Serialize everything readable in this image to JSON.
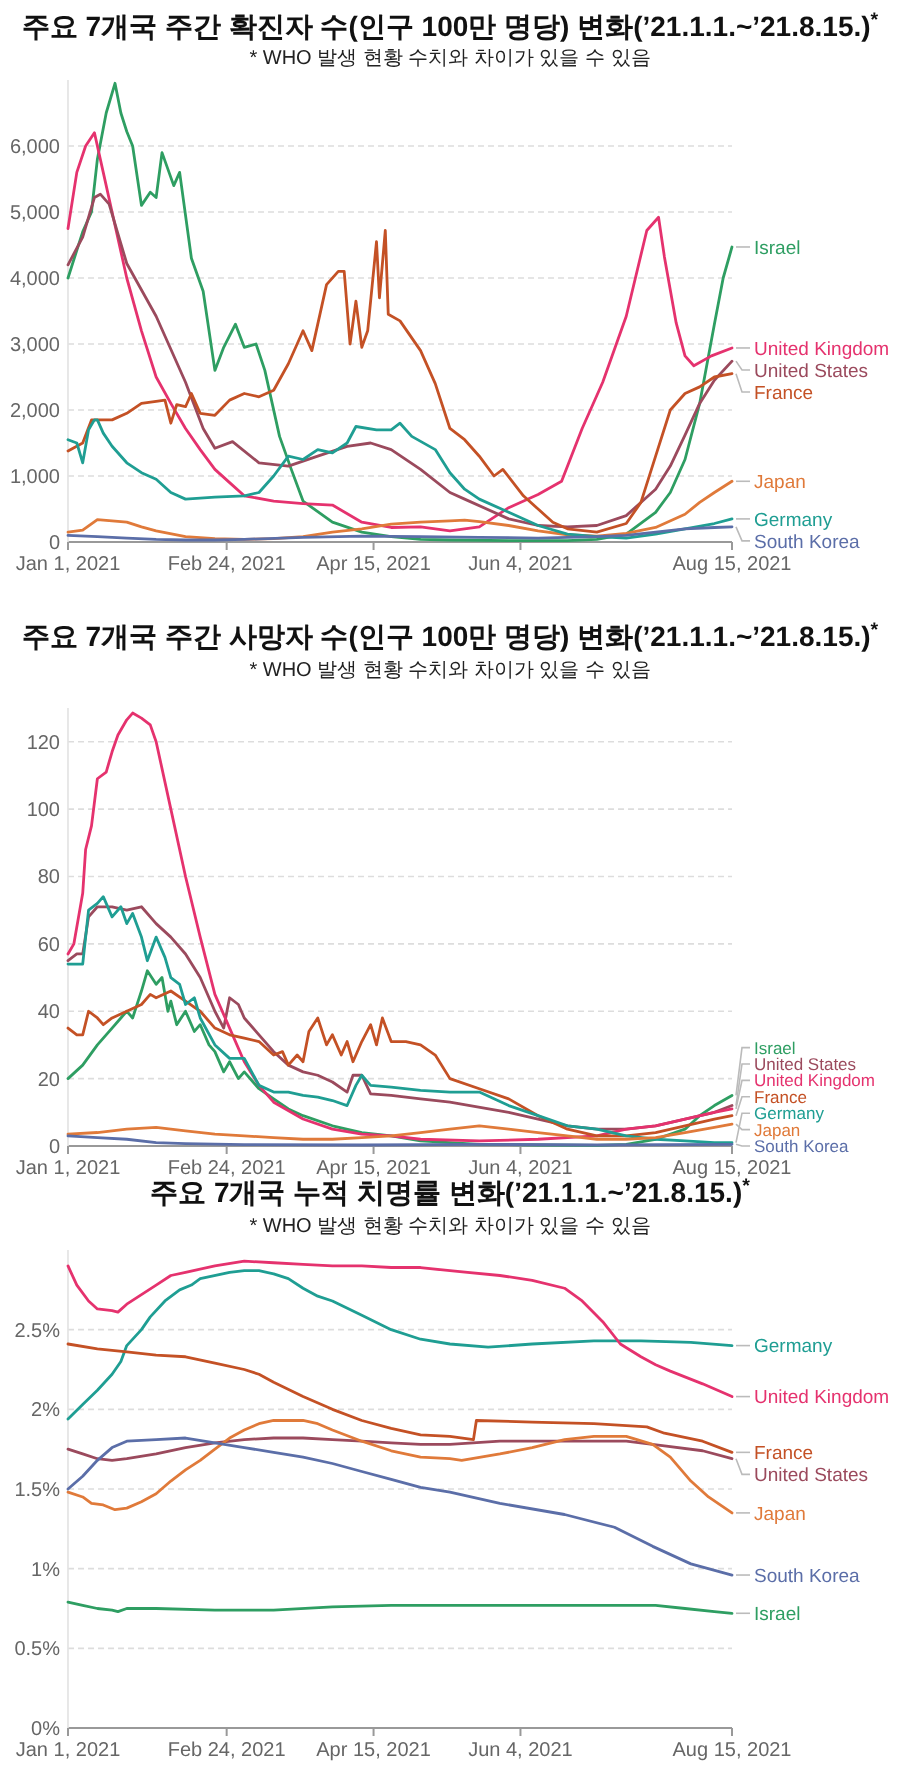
{
  "chart_data": [
    {
      "type": "line",
      "title": "주요 7개국 주간 확진자 수(인구 100만 명당) 변화(’21.1.1.~’21.8.15.)$^{*}$",
      "subtitle": "* WHO 발생 현황 수치와 차이가 있을 수 있음",
      "grid": "y",
      "legend": "right",
      "xlim": [
        "2021-01-01",
        "2021-08-15"
      ],
      "xticks": [
        {
          "value": "2021-01-01",
          "label": "Jan 1, 2021"
        },
        {
          "value": "2021-02-24",
          "label": "Feb 24, 2021"
        },
        {
          "value": "2021-04-15",
          "label": "Apr 15, 2021"
        },
        {
          "value": "2021-06-04",
          "label": "Jun 4, 2021"
        },
        {
          "value": "2021-08-15",
          "label": "Aug 15, 2021"
        }
      ],
      "ylim": [
        0,
        7000
      ],
      "yticks": [
        0,
        {
          "value": 1000,
          "label": "1,000"
        },
        {
          "value": 2000,
          "label": "2,000"
        },
        {
          "value": 3000,
          "label": "3,000"
        },
        {
          "value": 4000,
          "label": "4,000"
        },
        {
          "value": 5000,
          "label": "5,000"
        },
        {
          "value": 6000,
          "label": "6,000"
        }
      ],
      "series": [
        {
          "name": "Israel",
          "color": "#2e9e62",
          "x": [
            "2021-01-01",
            "2021-01-06",
            "2021-01-09",
            "2021-01-11",
            "2021-01-14",
            "2021-01-17",
            "2021-01-19",
            "2021-01-21",
            "2021-01-23",
            "2021-01-26",
            "2021-01-29",
            "2021-01-31",
            "2021-02-02",
            "2021-02-06",
            "2021-02-08",
            "2021-02-12",
            "2021-02-16",
            "2021-02-20",
            "2021-02-23",
            "2021-02-27",
            "2021-03-02",
            "2021-03-06",
            "2021-03-09",
            "2021-03-14",
            "2021-03-18",
            "2021-03-22",
            "2021-04-01",
            "2021-04-11",
            "2021-04-21",
            "2021-05-01",
            "2021-05-11",
            "2021-05-31",
            "2021-06-20",
            "2021-06-30",
            "2021-07-10",
            "2021-07-20",
            "2021-07-25",
            "2021-07-30",
            "2021-08-04",
            "2021-08-09",
            "2021-08-12",
            "2021-08-15"
          ],
          "values": [
            4000,
            4700,
            5000,
            5800,
            6500,
            6950,
            6500,
            6220,
            6000,
            5100,
            5300,
            5220,
            5900,
            5400,
            5600,
            4300,
            3800,
            2600,
            2950,
            3300,
            2950,
            3000,
            2600,
            1600,
            1100,
            620,
            300,
            150,
            80,
            40,
            30,
            20,
            20,
            40,
            120,
            450,
            750,
            1250,
            2100,
            3300,
            4000,
            4470
          ]
        },
        {
          "name": "United Kingdom",
          "color": "#e5326e",
          "x": [
            "2021-01-01",
            "2021-01-04",
            "2021-01-07",
            "2021-01-10",
            "2021-01-13",
            "2021-01-17",
            "2021-01-21",
            "2021-01-26",
            "2021-01-31",
            "2021-02-05",
            "2021-02-10",
            "2021-02-15",
            "2021-02-20",
            "2021-02-25",
            "2021-03-02",
            "2021-03-12",
            "2021-03-22",
            "2021-04-01",
            "2021-04-11",
            "2021-04-21",
            "2021-05-01",
            "2021-05-11",
            "2021-05-21",
            "2021-05-31",
            "2021-06-10",
            "2021-06-18",
            "2021-06-25",
            "2021-07-02",
            "2021-07-10",
            "2021-07-17",
            "2021-07-21",
            "2021-07-23",
            "2021-07-27",
            "2021-07-30",
            "2021-08-02",
            "2021-08-08",
            "2021-08-15"
          ],
          "values": [
            4750,
            5600,
            6000,
            6200,
            5600,
            4800,
            4000,
            3200,
            2500,
            2100,
            1720,
            1400,
            1100,
            900,
            700,
            620,
            580,
            560,
            300,
            220,
            230,
            170,
            230,
            520,
            720,
            920,
            1720,
            2420,
            3420,
            4720,
            4920,
            4320,
            3320,
            2820,
            2670,
            2820,
            2940
          ]
        },
        {
          "name": "United States",
          "color": "#9b4a5d",
          "x": [
            "2021-01-01",
            "2021-01-06",
            "2021-01-10",
            "2021-01-12",
            "2021-01-15",
            "2021-01-21",
            "2021-01-31",
            "2021-02-10",
            "2021-02-16",
            "2021-02-20",
            "2021-02-26",
            "2021-03-07",
            "2021-03-17",
            "2021-03-27",
            "2021-04-06",
            "2021-04-14",
            "2021-04-21",
            "2021-05-01",
            "2021-05-11",
            "2021-05-16",
            "2021-05-31",
            "2021-06-10",
            "2021-06-20",
            "2021-06-30",
            "2021-07-10",
            "2021-07-20",
            "2021-07-25",
            "2021-07-30",
            "2021-08-04",
            "2021-08-09",
            "2021-08-15"
          ],
          "values": [
            4200,
            4620,
            5220,
            5270,
            5120,
            4220,
            3420,
            2420,
            1720,
            1420,
            1520,
            1200,
            1150,
            1300,
            1450,
            1500,
            1400,
            1100,
            750,
            650,
            350,
            250,
            230,
            250,
            400,
            800,
            1150,
            1620,
            2100,
            2450,
            2740
          ]
        },
        {
          "name": "France",
          "color": "#c45125",
          "x": [
            "2021-01-01",
            "2021-01-06",
            "2021-01-09",
            "2021-01-16",
            "2021-01-21",
            "2021-01-26",
            "2021-01-31",
            "2021-02-03",
            "2021-02-05",
            "2021-02-07",
            "2021-02-10",
            "2021-02-12",
            "2021-02-15",
            "2021-02-20",
            "2021-02-25",
            "2021-03-02",
            "2021-03-07",
            "2021-03-12",
            "2021-03-17",
            "2021-03-22",
            "2021-03-25",
            "2021-03-30",
            "2021-04-03",
            "2021-04-05",
            "2021-04-07",
            "2021-04-09",
            "2021-04-11",
            "2021-04-13",
            "2021-04-16",
            "2021-04-17",
            "2021-04-19",
            "2021-04-20",
            "2021-04-24",
            "2021-05-01",
            "2021-05-06",
            "2021-05-11",
            "2021-05-16",
            "2021-05-21",
            "2021-05-26",
            "2021-05-29",
            "2021-06-05",
            "2021-06-10",
            "2021-06-15",
            "2021-06-20",
            "2021-06-30",
            "2021-07-10",
            "2021-07-15",
            "2021-07-20",
            "2021-07-25",
            "2021-07-30",
            "2021-08-04",
            "2021-08-09",
            "2021-08-15"
          ],
          "values": [
            1380,
            1500,
            1850,
            1850,
            1950,
            2100,
            2130,
            2150,
            1800,
            2080,
            2050,
            2250,
            1950,
            1920,
            2150,
            2250,
            2200,
            2300,
            2700,
            3200,
            2900,
            3900,
            4100,
            4100,
            3000,
            3650,
            2950,
            3200,
            4550,
            3700,
            4720,
            3450,
            3350,
            2900,
            2400,
            1720,
            1550,
            1300,
            1000,
            1100,
            700,
            500,
            300,
            200,
            150,
            280,
            600,
            1300,
            2000,
            2250,
            2350,
            2500,
            2550
          ]
        },
        {
          "name": "Japan",
          "color": "#e07a3a",
          "x": [
            "2021-01-01",
            "2021-01-06",
            "2021-01-11",
            "2021-01-16",
            "2021-01-21",
            "2021-01-26",
            "2021-01-31",
            "2021-02-10",
            "2021-02-20",
            "2021-03-02",
            "2021-03-12",
            "2021-03-22",
            "2021-04-01",
            "2021-04-11",
            "2021-04-21",
            "2021-05-01",
            "2021-05-11",
            "2021-05-16",
            "2021-05-21",
            "2021-05-31",
            "2021-06-10",
            "2021-06-20",
            "2021-06-30",
            "2021-07-10",
            "2021-07-20",
            "2021-07-30",
            "2021-08-04",
            "2021-08-09",
            "2021-08-15"
          ],
          "values": [
            150,
            180,
            340,
            320,
            300,
            230,
            170,
            80,
            50,
            40,
            50,
            80,
            150,
            200,
            270,
            300,
            320,
            330,
            310,
            250,
            170,
            110,
            90,
            130,
            220,
            420,
            600,
            750,
            920
          ]
        },
        {
          "name": "Germany",
          "color": "#1f9e93",
          "x": [
            "2021-01-01",
            "2021-01-04",
            "2021-01-06",
            "2021-01-08",
            "2021-01-10",
            "2021-01-11",
            "2021-01-13",
            "2021-01-16",
            "2021-01-21",
            "2021-01-26",
            "2021-01-31",
            "2021-02-05",
            "2021-02-10",
            "2021-02-20",
            "2021-03-02",
            "2021-03-07",
            "2021-03-12",
            "2021-03-17",
            "2021-03-22",
            "2021-03-27",
            "2021-04-01",
            "2021-04-06",
            "2021-04-09",
            "2021-04-16",
            "2021-04-21",
            "2021-04-24",
            "2021-04-28",
            "2021-05-06",
            "2021-05-11",
            "2021-05-16",
            "2021-05-21",
            "2021-05-31",
            "2021-06-10",
            "2021-06-20",
            "2021-06-30",
            "2021-07-10",
            "2021-07-20",
            "2021-07-30",
            "2021-08-09",
            "2021-08-15"
          ],
          "values": [
            1550,
            1500,
            1200,
            1700,
            1850,
            1850,
            1650,
            1450,
            1200,
            1050,
            950,
            750,
            650,
            680,
            700,
            750,
            1000,
            1300,
            1250,
            1400,
            1350,
            1500,
            1750,
            1700,
            1700,
            1800,
            1600,
            1400,
            1050,
            800,
            650,
            450,
            250,
            120,
            80,
            60,
            120,
            200,
            280,
            350
          ]
        },
        {
          "name": "South Korea",
          "color": "#5b6ea8",
          "x": [
            "2021-01-01",
            "2021-01-11",
            "2021-01-21",
            "2021-01-31",
            "2021-02-10",
            "2021-02-20",
            "2021-03-02",
            "2021-03-22",
            "2021-04-11",
            "2021-05-01",
            "2021-05-21",
            "2021-06-10",
            "2021-06-30",
            "2021-07-10",
            "2021-07-20",
            "2021-07-30",
            "2021-08-09",
            "2021-08-15"
          ],
          "values": [
            100,
            80,
            60,
            40,
            30,
            30,
            40,
            70,
            90,
            80,
            70,
            60,
            80,
            100,
            150,
            200,
            220,
            230
          ]
        }
      ]
    },
    {
      "type": "line",
      "title": "주요 7개국 주간 사망자 수(인구 100만 명당) 변화(’21.1.1.~’21.8.15.)$^{*}$",
      "subtitle": "* WHO 발생 현황 수치와 차이가 있을 수 있음",
      "grid": "y",
      "legend": "right",
      "xlim": [
        "2021-01-01",
        "2021-08-15"
      ],
      "xticks": [
        {
          "value": "2021-01-01",
          "label": "Jan 1, 2021"
        },
        {
          "value": "2021-02-24",
          "label": "Feb 24, 2021"
        },
        {
          "value": "2021-04-15",
          "label": "Apr 15, 2021"
        },
        {
          "value": "2021-06-04",
          "label": "Jun 4, 2021"
        },
        {
          "value": "2021-08-15",
          "label": "Aug 15, 2021"
        }
      ],
      "ylim": [
        0,
        130
      ],
      "yticks": [
        0,
        20,
        40,
        60,
        80,
        100,
        120
      ],
      "series": [
        {
          "name": "Israel",
          "color": "#2e9e62",
          "x": [
            "2021-01-01",
            "2021-01-06",
            "2021-01-11",
            "2021-01-16",
            "2021-01-19",
            "2021-01-21",
            "2021-01-23",
            "2021-01-26",
            "2021-01-28",
            "2021-01-31",
            "2021-02-02",
            "2021-02-04",
            "2021-02-05",
            "2021-02-07",
            "2021-02-10",
            "2021-02-13",
            "2021-02-15",
            "2021-02-18",
            "2021-02-20",
            "2021-02-23",
            "2021-02-25",
            "2021-02-28",
            "2021-03-02",
            "2021-03-05",
            "2021-03-07",
            "2021-03-12",
            "2021-03-17",
            "2021-03-22",
            "2021-04-01",
            "2021-04-11",
            "2021-04-21",
            "2021-05-01",
            "2021-05-11",
            "2021-05-21",
            "2021-06-10",
            "2021-06-30",
            "2021-07-10",
            "2021-07-20",
            "2021-07-30",
            "2021-08-04",
            "2021-08-09",
            "2021-08-15"
          ],
          "values": [
            20,
            24,
            30,
            35,
            38,
            40,
            38,
            46,
            52,
            48,
            50,
            40,
            43,
            36,
            40,
            34,
            36,
            30,
            28,
            22,
            25,
            20,
            22,
            19,
            17,
            14,
            11,
            9,
            6,
            4,
            3,
            1.5,
            1,
            0.5,
            0.3,
            0.2,
            0.5,
            2,
            5,
            9,
            12,
            15
          ]
        },
        {
          "name": "United States",
          "color": "#9b4a5d",
          "x": [
            "2021-01-01",
            "2021-01-04",
            "2021-01-06",
            "2021-01-08",
            "2021-01-11",
            "2021-01-16",
            "2021-01-21",
            "2021-01-26",
            "2021-01-31",
            "2021-02-05",
            "2021-02-10",
            "2021-02-15",
            "2021-02-20",
            "2021-02-23",
            "2021-02-25",
            "2021-02-28",
            "2021-03-02",
            "2021-03-07",
            "2021-03-12",
            "2021-03-17",
            "2021-03-22",
            "2021-03-27",
            "2021-04-01",
            "2021-04-06",
            "2021-04-08",
            "2021-04-11",
            "2021-04-14",
            "2021-04-21",
            "2021-05-01",
            "2021-05-11",
            "2021-05-31",
            "2021-06-10",
            "2021-06-20",
            "2021-06-30",
            "2021-07-10",
            "2021-07-20",
            "2021-07-30",
            "2021-08-09",
            "2021-08-15"
          ],
          "values": [
            55,
            57,
            57,
            68,
            71,
            71,
            70,
            71,
            66,
            62,
            57,
            50,
            40,
            35,
            44,
            42,
            38,
            33,
            28,
            24,
            22,
            21,
            19,
            16,
            21,
            21,
            15.5,
            15,
            14,
            13,
            10,
            8,
            6,
            5,
            5,
            6,
            8,
            10,
            12
          ]
        },
        {
          "name": "United Kingdom",
          "color": "#e5326e",
          "x": [
            "2021-01-01",
            "2021-01-03",
            "2021-01-06",
            "2021-01-07",
            "2021-01-09",
            "2021-01-11",
            "2021-01-14",
            "2021-01-16",
            "2021-01-18",
            "2021-01-21",
            "2021-01-23",
            "2021-01-26",
            "2021-01-29",
            "2021-01-31",
            "2021-02-05",
            "2021-02-10",
            "2021-02-15",
            "2021-02-20",
            "2021-02-25",
            "2021-03-02",
            "2021-03-07",
            "2021-03-12",
            "2021-03-22",
            "2021-04-01",
            "2021-04-11",
            "2021-04-21",
            "2021-05-01",
            "2021-05-21",
            "2021-06-10",
            "2021-06-30",
            "2021-07-10",
            "2021-07-20",
            "2021-07-30",
            "2021-08-09",
            "2021-08-15"
          ],
          "values": [
            57,
            60,
            75,
            88,
            95,
            109,
            111,
            117,
            122,
            126.5,
            128.5,
            127,
            125,
            120,
            100,
            80,
            62,
            45,
            35,
            25,
            18,
            13,
            8,
            5,
            3.5,
            3,
            2,
            1.5,
            2,
            3,
            5,
            6,
            8,
            10,
            11
          ]
        },
        {
          "name": "France",
          "color": "#c45125",
          "x": [
            "2021-01-01",
            "2021-01-04",
            "2021-01-06",
            "2021-01-08",
            "2021-01-11",
            "2021-01-13",
            "2021-01-16",
            "2021-01-21",
            "2021-01-26",
            "2021-01-29",
            "2021-01-31",
            "2021-02-05",
            "2021-02-10",
            "2021-02-15",
            "2021-02-20",
            "2021-02-25",
            "2021-03-02",
            "2021-03-07",
            "2021-03-12",
            "2021-03-15",
            "2021-03-17",
            "2021-03-20",
            "2021-03-22",
            "2021-03-24",
            "2021-03-27",
            "2021-03-30",
            "2021-04-01",
            "2021-04-04",
            "2021-04-06",
            "2021-04-08",
            "2021-04-11",
            "2021-04-14",
            "2021-04-16",
            "2021-04-18",
            "2021-04-21",
            "2021-04-26",
            "2021-05-01",
            "2021-05-06",
            "2021-05-11",
            "2021-05-21",
            "2021-05-31",
            "2021-06-10",
            "2021-06-20",
            "2021-06-30",
            "2021-07-10",
            "2021-07-20",
            "2021-07-30",
            "2021-08-09",
            "2021-08-15"
          ],
          "values": [
            35,
            33,
            33,
            40,
            38,
            36,
            38,
            40,
            42,
            45,
            44,
            46,
            43,
            40,
            35,
            33,
            32,
            31,
            27,
            28,
            24,
            27,
            25,
            34,
            38,
            30,
            33,
            27,
            31,
            25,
            31,
            36,
            30,
            38,
            31,
            31,
            30,
            27,
            20,
            17,
            14,
            9,
            5,
            3,
            3,
            4,
            6,
            8,
            9
          ]
        },
        {
          "name": "Germany",
          "color": "#1f9e93",
          "x": [
            "2021-01-01",
            "2021-01-06",
            "2021-01-08",
            "2021-01-11",
            "2021-01-13",
            "2021-01-16",
            "2021-01-19",
            "2021-01-21",
            "2021-01-23",
            "2021-01-26",
            "2021-01-28",
            "2021-01-31",
            "2021-02-03",
            "2021-02-05",
            "2021-02-08",
            "2021-02-10",
            "2021-02-13",
            "2021-02-15",
            "2021-02-20",
            "2021-02-25",
            "2021-03-02",
            "2021-03-07",
            "2021-03-12",
            "2021-03-17",
            "2021-03-22",
            "2021-03-27",
            "2021-04-01",
            "2021-04-06",
            "2021-04-09",
            "2021-04-11",
            "2021-04-14",
            "2021-04-21",
            "2021-05-01",
            "2021-05-11",
            "2021-05-21",
            "2021-05-26",
            "2021-05-31",
            "2021-06-10",
            "2021-06-20",
            "2021-06-30",
            "2021-07-10",
            "2021-07-20",
            "2021-07-30",
            "2021-08-09",
            "2021-08-15"
          ],
          "values": [
            54,
            54,
            70,
            72,
            74,
            68,
            71,
            66,
            69,
            62,
            55,
            62,
            56,
            50,
            48,
            42,
            44,
            38,
            30,
            26,
            26,
            18,
            16,
            16,
            15,
            14.5,
            13.5,
            12,
            18,
            21,
            18,
            17.5,
            16.5,
            16,
            16,
            14,
            12,
            9,
            6,
            5,
            3,
            2,
            1.5,
            1,
            1
          ]
        },
        {
          "name": "Japan",
          "color": "#e07a3a",
          "x": [
            "2021-01-01",
            "2021-01-11",
            "2021-01-21",
            "2021-01-31",
            "2021-02-10",
            "2021-02-20",
            "2021-03-02",
            "2021-03-12",
            "2021-03-22",
            "2021-04-01",
            "2021-04-11",
            "2021-04-21",
            "2021-05-01",
            "2021-05-11",
            "2021-05-21",
            "2021-05-31",
            "2021-06-10",
            "2021-06-20",
            "2021-06-30",
            "2021-07-10",
            "2021-07-20",
            "2021-07-30",
            "2021-08-09",
            "2021-08-15"
          ],
          "values": [
            3.5,
            4,
            5,
            5.5,
            4.5,
            3.5,
            3,
            2.5,
            2,
            2,
            2.5,
            3,
            4,
            5,
            6,
            5,
            4,
            3,
            2,
            2,
            2.5,
            4,
            5.5,
            6.5
          ]
        },
        {
          "name": "South Korea",
          "color": "#5b6ea8",
          "x": [
            "2021-01-01",
            "2021-01-11",
            "2021-01-21",
            "2021-01-31",
            "2021-02-10",
            "2021-03-02",
            "2021-04-11",
            "2021-05-21",
            "2021-06-30",
            "2021-08-15"
          ],
          "values": [
            3,
            2.5,
            2,
            1,
            0.7,
            0.4,
            0.3,
            0.5,
            0.3,
            0.5
          ]
        }
      ]
    },
    {
      "type": "line",
      "title": "주요 7개국 누적 치명률 변화(’21.1.1.~’21.8.15.)$^{*}$",
      "subtitle": "* WHO 발생 현황 수치와 차이가 있을 수 있음",
      "grid": "y",
      "legend": "right",
      "xlim": [
        "2021-01-01",
        "2021-08-15"
      ],
      "xticks": [
        {
          "value": "2021-01-01",
          "label": "Jan 1, 2021"
        },
        {
          "value": "2021-02-24",
          "label": "Feb 24, 2021"
        },
        {
          "value": "2021-04-15",
          "label": "Apr 15, 2021"
        },
        {
          "value": "2021-06-04",
          "label": "Jun 4, 2021"
        },
        {
          "value": "2021-08-15",
          "label": "Aug 15, 2021"
        }
      ],
      "ylim": [
        0,
        3
      ],
      "yticks": [
        {
          "value": 0,
          "label": "0%"
        },
        {
          "value": 0.5,
          "label": "0.5%"
        },
        {
          "value": 1,
          "label": "1%"
        },
        {
          "value": 1.5,
          "label": "1.5%"
        },
        {
          "value": 2,
          "label": "2%"
        },
        {
          "value": 2.5,
          "label": "2.5%"
        }
      ],
      "series": [
        {
          "name": "Germany",
          "color": "#1f9e93",
          "x": [
            "2021-01-01",
            "2021-01-06",
            "2021-01-11",
            "2021-01-16",
            "2021-01-19",
            "2021-01-21",
            "2021-01-26",
            "2021-01-29",
            "2021-02-03",
            "2021-02-08",
            "2021-02-12",
            "2021-02-15",
            "2021-02-25",
            "2021-03-02",
            "2021-03-07",
            "2021-03-12",
            "2021-03-17",
            "2021-03-22",
            "2021-03-27",
            "2021-04-01",
            "2021-04-11",
            "2021-04-21",
            "2021-05-01",
            "2021-05-11",
            "2021-05-24",
            "2021-06-08",
            "2021-06-29",
            "2021-07-15",
            "2021-08-01",
            "2021-08-15"
          ],
          "values": [
            1.94,
            2.03,
            2.12,
            2.22,
            2.3,
            2.4,
            2.5,
            2.58,
            2.68,
            2.75,
            2.78,
            2.82,
            2.86,
            2.87,
            2.87,
            2.85,
            2.82,
            2.76,
            2.71,
            2.68,
            2.59,
            2.5,
            2.44,
            2.41,
            2.39,
            2.41,
            2.43,
            2.43,
            2.42,
            2.4
          ]
        },
        {
          "name": "United Kingdom",
          "color": "#e5326e",
          "x": [
            "2021-01-01",
            "2021-01-04",
            "2021-01-08",
            "2021-01-11",
            "2021-01-16",
            "2021-01-18",
            "2021-01-21",
            "2021-01-26",
            "2021-01-31",
            "2021-02-05",
            "2021-02-10",
            "2021-02-20",
            "2021-03-02",
            "2021-03-12",
            "2021-03-22",
            "2021-04-01",
            "2021-04-11",
            "2021-04-21",
            "2021-05-01",
            "2021-05-11",
            "2021-05-28",
            "2021-06-08",
            "2021-06-19",
            "2021-06-25",
            "2021-07-02",
            "2021-07-08",
            "2021-07-15",
            "2021-07-20",
            "2021-07-25",
            "2021-08-05",
            "2021-08-15"
          ],
          "values": [
            2.9,
            2.78,
            2.68,
            2.63,
            2.62,
            2.61,
            2.66,
            2.72,
            2.78,
            2.84,
            2.86,
            2.9,
            2.93,
            2.92,
            2.91,
            2.9,
            2.9,
            2.89,
            2.89,
            2.87,
            2.84,
            2.81,
            2.76,
            2.68,
            2.55,
            2.41,
            2.33,
            2.28,
            2.24,
            2.16,
            2.08
          ]
        },
        {
          "name": "France",
          "color": "#c45125",
          "x": [
            "2021-01-01",
            "2021-01-11",
            "2021-01-21",
            "2021-01-31",
            "2021-02-10",
            "2021-02-20",
            "2021-03-02",
            "2021-03-07",
            "2021-03-12",
            "2021-03-22",
            "2021-04-01",
            "2021-04-11",
            "2021-04-21",
            "2021-05-01",
            "2021-05-11",
            "2021-05-19",
            "2021-05-20",
            "2021-06-08",
            "2021-06-29",
            "2021-07-17",
            "2021-07-23",
            "2021-08-05",
            "2021-08-15"
          ],
          "values": [
            2.41,
            2.38,
            2.36,
            2.34,
            2.33,
            2.29,
            2.25,
            2.22,
            2.17,
            2.08,
            2.0,
            1.93,
            1.88,
            1.84,
            1.83,
            1.81,
            1.93,
            1.92,
            1.91,
            1.89,
            1.85,
            1.8,
            1.73
          ]
        },
        {
          "name": "United States",
          "color": "#9b4a5d",
          "x": [
            "2021-01-01",
            "2021-01-06",
            "2021-01-11",
            "2021-01-16",
            "2021-01-21",
            "2021-01-31",
            "2021-02-10",
            "2021-02-20",
            "2021-03-02",
            "2021-03-12",
            "2021-03-22",
            "2021-04-01",
            "2021-04-11",
            "2021-04-21",
            "2021-05-01",
            "2021-05-11",
            "2021-05-28",
            "2021-06-19",
            "2021-07-10",
            "2021-07-23",
            "2021-08-05",
            "2021-08-15"
          ],
          "values": [
            1.75,
            1.72,
            1.69,
            1.68,
            1.69,
            1.72,
            1.76,
            1.79,
            1.81,
            1.82,
            1.82,
            1.81,
            1.8,
            1.79,
            1.78,
            1.78,
            1.8,
            1.8,
            1.8,
            1.77,
            1.74,
            1.69
          ]
        },
        {
          "name": "Japan",
          "color": "#e07a3a",
          "x": [
            "2021-01-01",
            "2021-01-06",
            "2021-01-09",
            "2021-01-13",
            "2021-01-17",
            "2021-01-21",
            "2021-01-26",
            "2021-01-31",
            "2021-02-05",
            "2021-02-10",
            "2021-02-15",
            "2021-02-20",
            "2021-02-25",
            "2021-03-02",
            "2021-03-07",
            "2021-03-12",
            "2021-03-22",
            "2021-03-27",
            "2021-04-01",
            "2021-04-11",
            "2021-04-21",
            "2021-05-01",
            "2021-05-11",
            "2021-05-15",
            "2021-05-28",
            "2021-06-08",
            "2021-06-19",
            "2021-06-29",
            "2021-07-10",
            "2021-07-19",
            "2021-07-25",
            "2021-08-01",
            "2021-08-07",
            "2021-08-15"
          ],
          "values": [
            1.48,
            1.45,
            1.41,
            1.4,
            1.37,
            1.38,
            1.42,
            1.47,
            1.55,
            1.62,
            1.68,
            1.75,
            1.82,
            1.87,
            1.91,
            1.93,
            1.93,
            1.91,
            1.87,
            1.8,
            1.74,
            1.7,
            1.69,
            1.68,
            1.72,
            1.76,
            1.81,
            1.83,
            1.83,
            1.78,
            1.7,
            1.55,
            1.45,
            1.35
          ]
        },
        {
          "name": "South Korea",
          "color": "#5b6ea8",
          "x": [
            "2021-01-01",
            "2021-01-06",
            "2021-01-11",
            "2021-01-16",
            "2021-01-21",
            "2021-01-31",
            "2021-02-10",
            "2021-02-20",
            "2021-03-02",
            "2021-03-12",
            "2021-03-22",
            "2021-04-01",
            "2021-04-11",
            "2021-04-21",
            "2021-05-01",
            "2021-05-11",
            "2021-05-28",
            "2021-06-19",
            "2021-07-06",
            "2021-07-19",
            "2021-08-01",
            "2021-08-15"
          ],
          "values": [
            1.5,
            1.58,
            1.68,
            1.76,
            1.8,
            1.81,
            1.82,
            1.79,
            1.76,
            1.73,
            1.7,
            1.66,
            1.61,
            1.56,
            1.51,
            1.48,
            1.41,
            1.34,
            1.26,
            1.14,
            1.03,
            0.96
          ]
        },
        {
          "name": "Israel",
          "color": "#2e9e62",
          "x": [
            "2021-01-01",
            "2021-01-06",
            "2021-01-11",
            "2021-01-16",
            "2021-01-18",
            "2021-01-21",
            "2021-01-31",
            "2021-02-20",
            "2021-03-12",
            "2021-04-01",
            "2021-04-21",
            "2021-05-11",
            "2021-05-31",
            "2021-06-20",
            "2021-07-10",
            "2021-07-20",
            "2021-07-30",
            "2021-08-09",
            "2021-08-15"
          ],
          "values": [
            0.79,
            0.77,
            0.75,
            0.74,
            0.73,
            0.75,
            0.75,
            0.74,
            0.74,
            0.76,
            0.77,
            0.77,
            0.77,
            0.77,
            0.77,
            0.77,
            0.75,
            0.73,
            0.72
          ]
        }
      ]
    }
  ]
}
